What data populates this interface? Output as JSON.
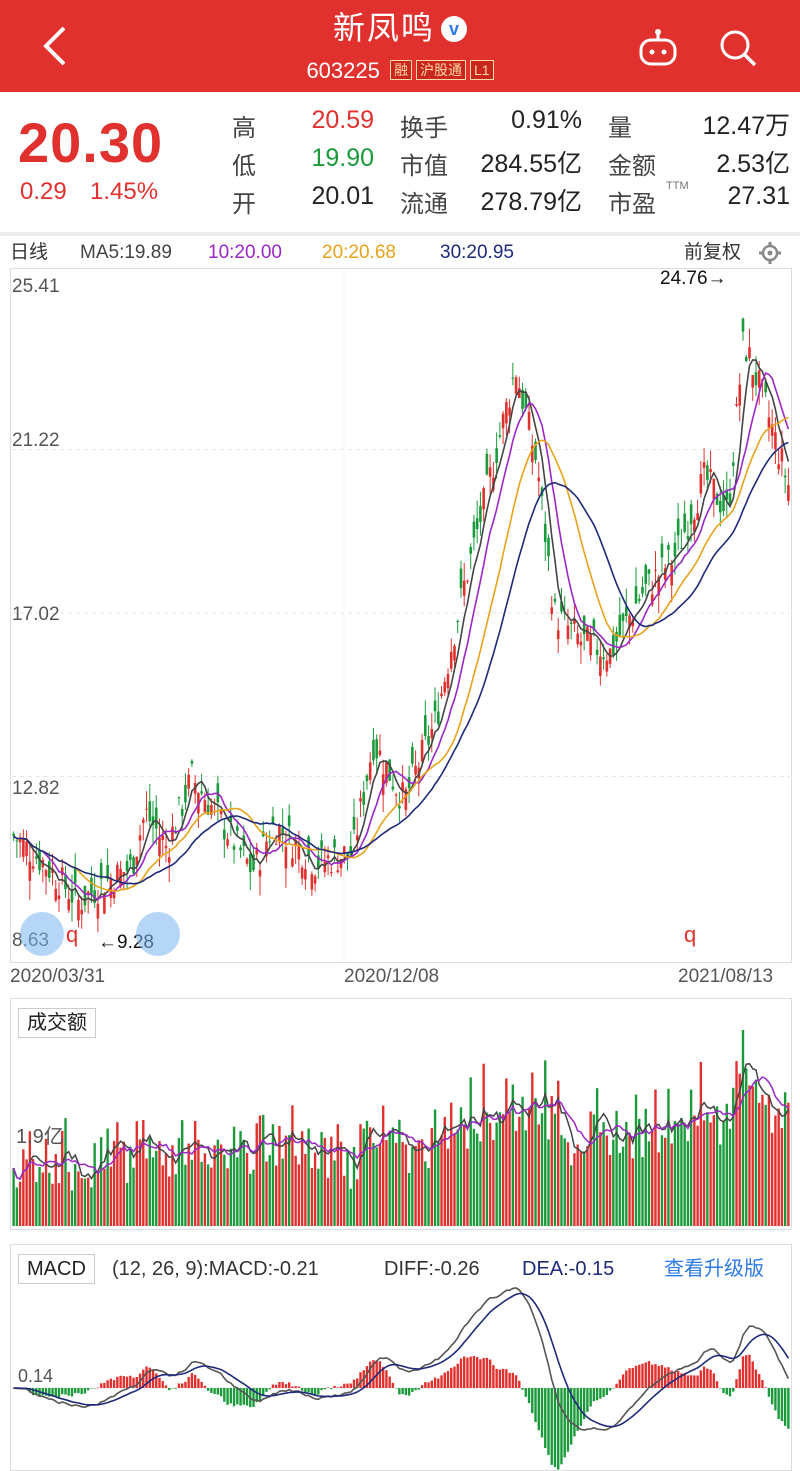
{
  "header": {
    "title": "新凤鸣",
    "verified_badge": "v",
    "code": "603225",
    "tags": [
      "融",
      "沪股通",
      "L1"
    ],
    "icons": [
      "back-arrow-icon",
      "robot-icon",
      "search-icon"
    ]
  },
  "quote": {
    "price": "20.30",
    "change": "0.29",
    "change_pct": "1.45%",
    "fields": [
      {
        "label": "高",
        "value": "20.59",
        "color": "#e0312f"
      },
      {
        "label": "低",
        "value": "19.90",
        "color": "#1a9a3a"
      },
      {
        "label": "开",
        "value": "20.01",
        "color": "#222222"
      },
      {
        "label": "换手",
        "value": "0.91%",
        "color": "#222222"
      },
      {
        "label": "市值",
        "value": "284.55亿",
        "color": "#222222"
      },
      {
        "label": "流通",
        "value": "278.79亿",
        "color": "#222222"
      },
      {
        "label": "量",
        "value": "12.47万",
        "color": "#222222"
      },
      {
        "label": "金额",
        "value": "2.53亿",
        "color": "#222222"
      },
      {
        "label": "市盈",
        "value": "27.31",
        "color": "#222222",
        "superscript": "TTM"
      }
    ]
  },
  "ma_bar": {
    "period": "日线",
    "ma5": "MA5:19.89",
    "ma10": "10:20.00",
    "ma20": "20:20.68",
    "ma30": "30:20.95",
    "adjust": "前复权",
    "colors": {
      "ma5": "#444444",
      "ma10": "#9b27c8",
      "ma20": "#e8a31a",
      "ma30": "#1e2a7a"
    }
  },
  "chart_data": [
    {
      "type": "candlestick",
      "title": "",
      "y_ticks": [
        "25.41",
        "21.22",
        "17.02",
        "12.82",
        "8.63"
      ],
      "ylim": [
        8.63,
        25.41
      ],
      "x_ticks": [
        "2020/03/31",
        "2020/12/08",
        "2021/08/13"
      ],
      "max_label": "24.76→",
      "min_label": "←9.28",
      "close_path": [
        {
          "x": "2020/03/31",
          "y": 11.3
        },
        {
          "x": "2020/04/20",
          "y": 10.6
        },
        {
          "x": "2020/05/12",
          "y": 9.6
        },
        {
          "x": "2020/05/28",
          "y": 10.1
        },
        {
          "x": "2020/06/15",
          "y": 10.5
        },
        {
          "x": "2020/06/24",
          "y": 11.9
        },
        {
          "x": "2020/07/08",
          "y": 11.0
        },
        {
          "x": "2020/07/24",
          "y": 12.8
        },
        {
          "x": "2020/08/10",
          "y": 11.8
        },
        {
          "x": "2020/09/01",
          "y": 10.4
        },
        {
          "x": "2020/09/15",
          "y": 11.6
        },
        {
          "x": "2020/10/12",
          "y": 10.6
        },
        {
          "x": "2020/11/05",
          "y": 10.9
        },
        {
          "x": "2020/11/18",
          "y": 13.7
        },
        {
          "x": "2020/12/08",
          "y": 12.2
        },
        {
          "x": "2020/12/28",
          "y": 14.2
        },
        {
          "x": "2021/01/15",
          "y": 17.6
        },
        {
          "x": "2021/01/29",
          "y": 19.9
        },
        {
          "x": "2021/02/18",
          "y": 23.3
        },
        {
          "x": "2021/03/04",
          "y": 20.8
        },
        {
          "x": "2021/03/15",
          "y": 17.0
        },
        {
          "x": "2021/04/01",
          "y": 16.3
        },
        {
          "x": "2021/04/20",
          "y": 16.0
        },
        {
          "x": "2021/05/10",
          "y": 17.5
        },
        {
          "x": "2021/06/01",
          "y": 18.5
        },
        {
          "x": "2021/06/20",
          "y": 20.5
        },
        {
          "x": "2021/07/05",
          "y": 19.6
        },
        {
          "x": "2021/07/15",
          "y": 24.0
        },
        {
          "x": "2021/07/28",
          "y": 22.5
        },
        {
          "x": "2021/08/13",
          "y": 20.3
        }
      ]
    },
    {
      "type": "bar",
      "title": "成交额",
      "y_tick": "1.9亿"
    },
    {
      "type": "bar",
      "title": "MACD",
      "y_tick": "0.14"
    }
  ],
  "macd_bar": {
    "label": "MACD",
    "params": "(12, 26, 9):MACD:-0.21",
    "diff": "DIFF:-0.26",
    "dea": "DEA:-0.15",
    "upgrade": "查看升级版"
  },
  "colors": {
    "red": "#e0312f",
    "green": "#1a9a3a",
    "header": "#e0312f",
    "link": "#2d7be5"
  }
}
